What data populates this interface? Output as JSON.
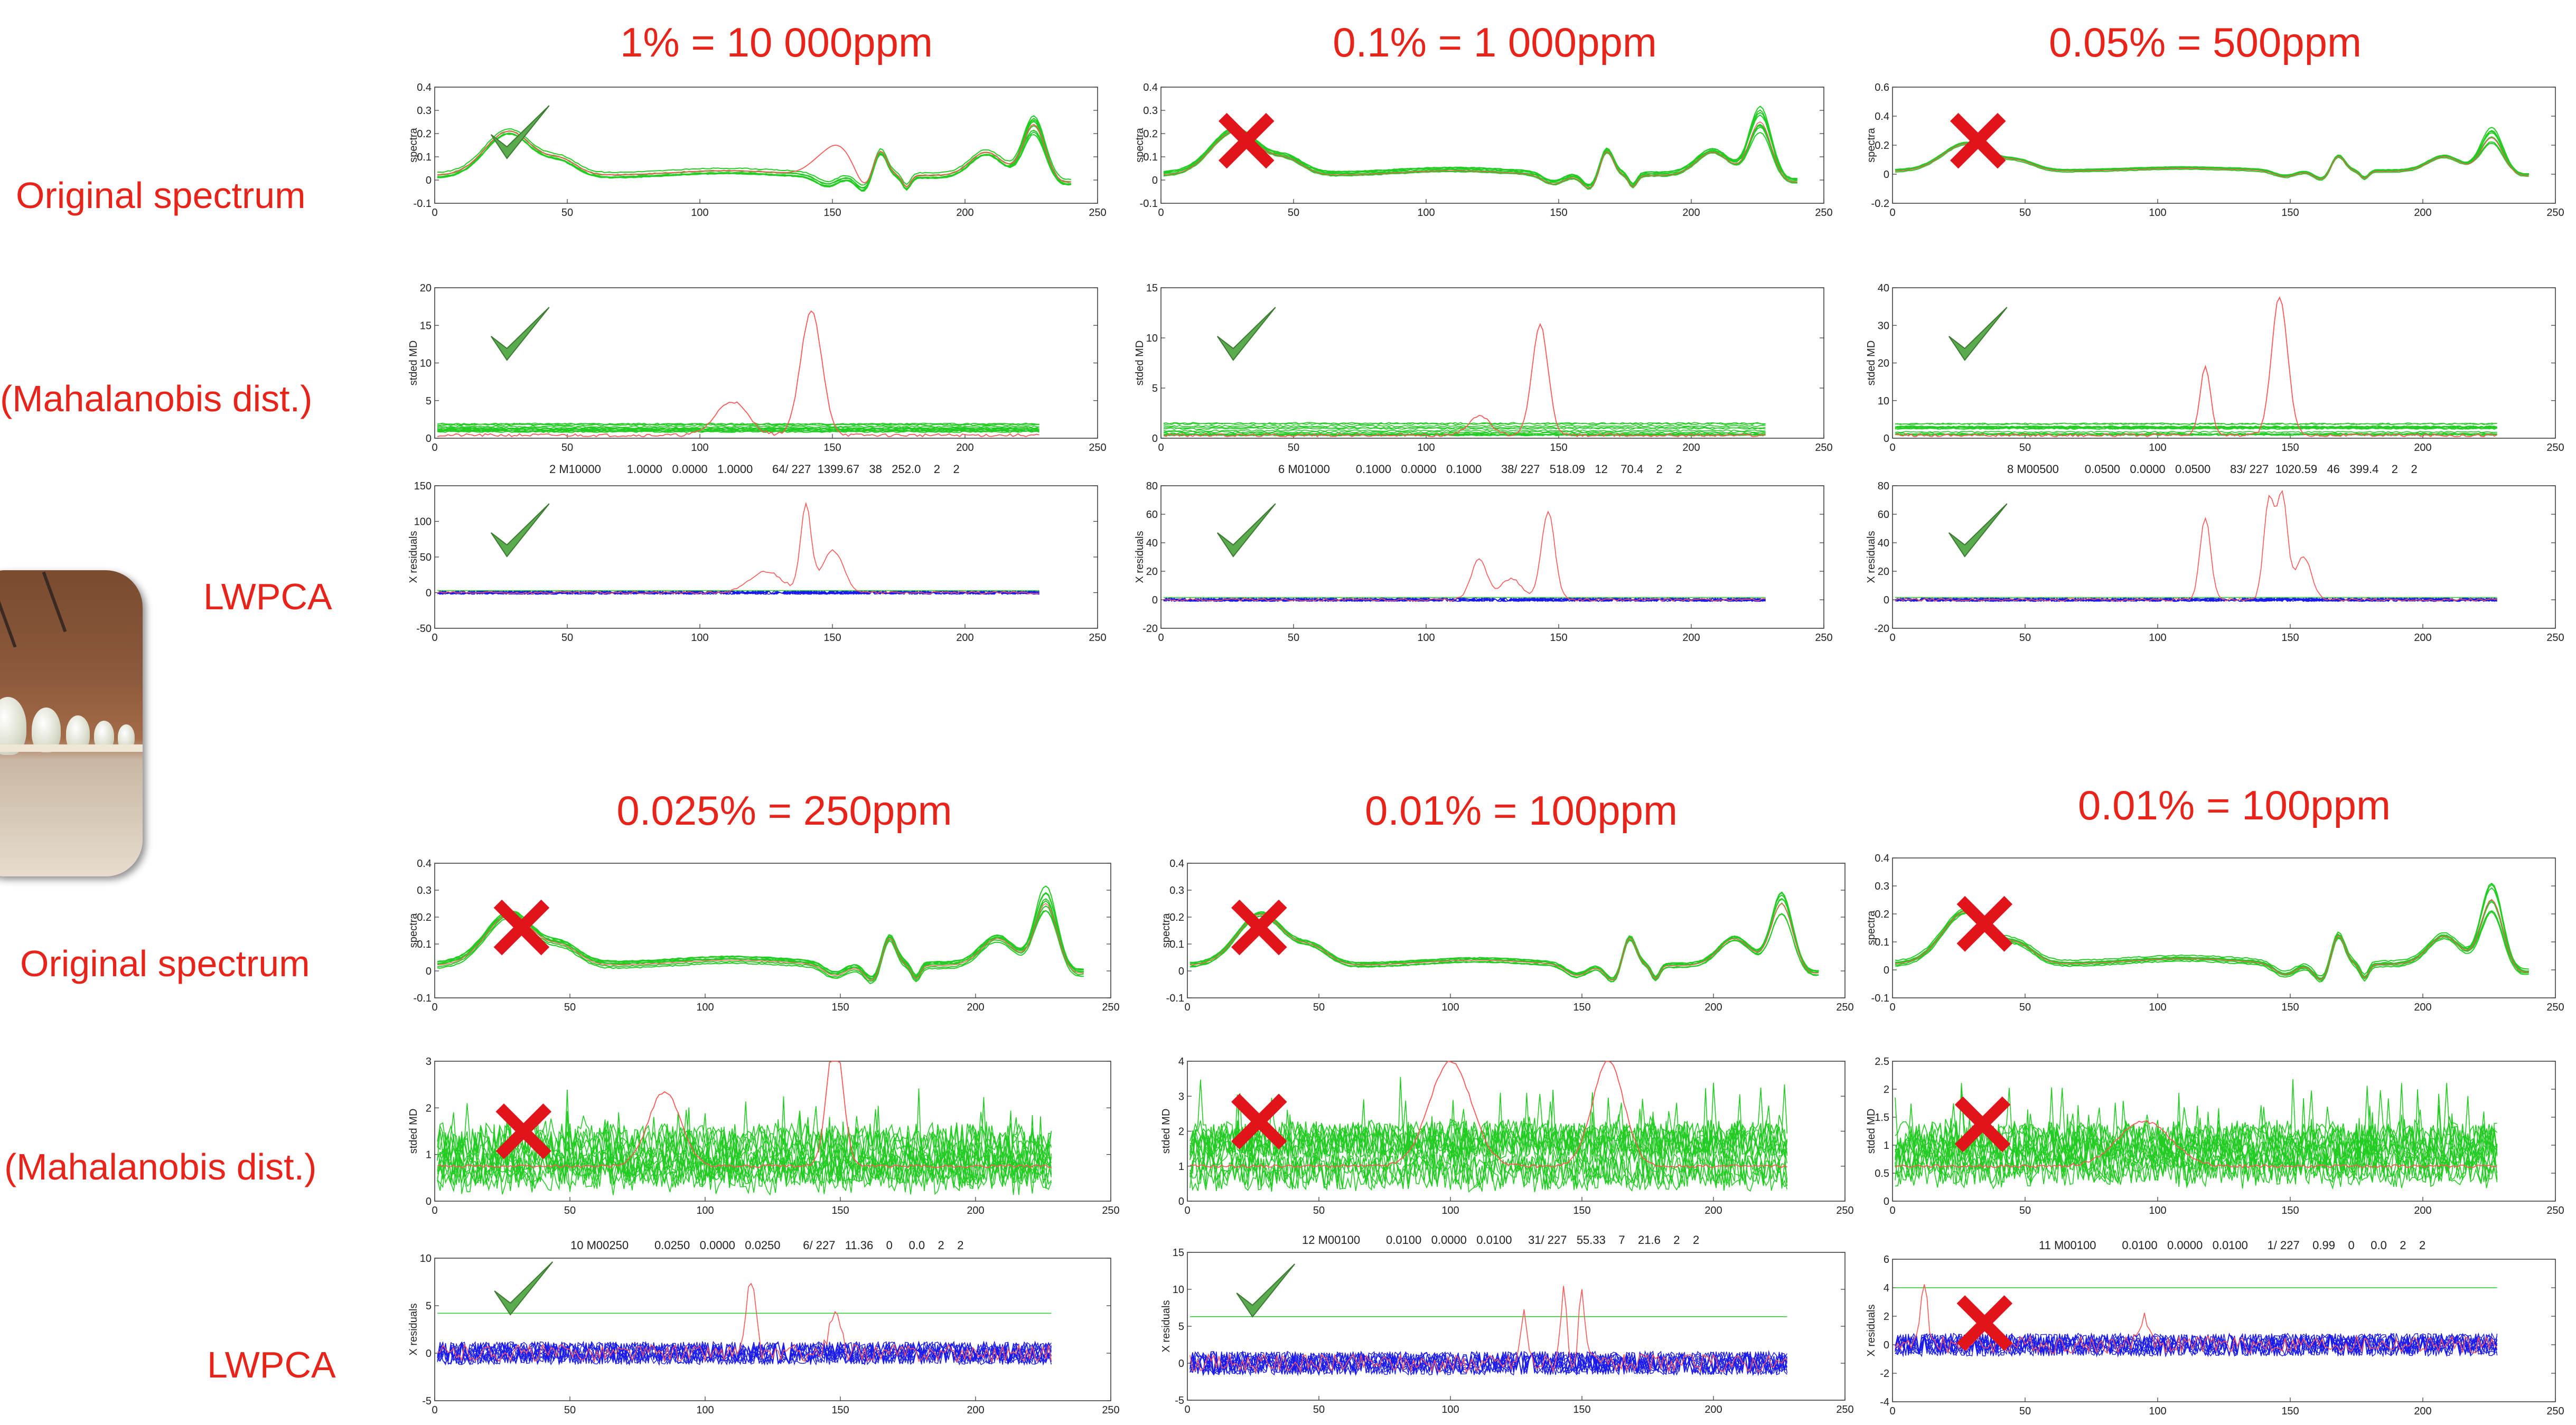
{
  "headers": {
    "c1": "1% = 10 000ppm",
    "c2": "0.1% = 1 000ppm",
    "c3": "0.05% =  500ppm",
    "c4": "0.025% =  250ppm",
    "c5": "0.01% =  100ppm",
    "c6": "0.01% =  100ppm"
  },
  "row_labels": {
    "orig1": "Original spectrum",
    "maha1": "(Mahalanobis dist.)",
    "lwpca1": "LWPCA",
    "orig2": "Original spectrum",
    "maha2": "(Mahalanobis dist.)",
    "lwpca2": "LWPCA"
  },
  "info_lines": {
    "p1": "2 M10000        1.0000   0.0000   1.0000      64/ 227  1399.67   38   252.0    2    2",
    "p2": "6 M01000        0.1000   0.0000   0.1000      38/ 227   518.09   12    70.4    2    2",
    "p3": "8 M00500        0.0500   0.0000   0.0500      83/ 227  1020.59   46   399.4    2    2",
    "p4": "10 M00250        0.0250   0.0000   0.0250       6/ 227   11.36    0     0.0    2    2",
    "p5": "12 M00100        0.0100   0.0000   0.0100     31/ 227   55.33    7    21.6    2    2",
    "p6": "11 M00100        0.0100   0.0000   0.0100      1/ 227    0.99    0     0.0    2    2"
  },
  "colors": {
    "accent": "#e8241a",
    "good": "#5aab4e",
    "bad": "#e0141a",
    "normal": "#22cc22",
    "outlier": "#ff5555",
    "residual": "#1a1aee"
  },
  "chart_data": [
    {
      "type": "line",
      "panel": "spectra-1",
      "ylabel": "spectra",
      "xlim": [
        0,
        250
      ],
      "ylim": [
        -0.1,
        0.4
      ],
      "yticks": [
        "-0.1",
        "0",
        "0.1",
        "0.2",
        "0.3",
        "0.4"
      ],
      "xticks": [
        "0",
        "50",
        "100",
        "150",
        "200",
        "250"
      ],
      "mark": "check"
    },
    {
      "type": "line",
      "panel": "spectra-2",
      "ylabel": "spectra",
      "xlim": [
        0,
        250
      ],
      "ylim": [
        -0.1,
        0.4
      ],
      "yticks": [
        "-0.1",
        "0",
        "0.1",
        "0.2",
        "0.3",
        "0.4"
      ],
      "xticks": [
        "0",
        "50",
        "100",
        "150",
        "200",
        "250"
      ],
      "mark": "cross"
    },
    {
      "type": "line",
      "panel": "spectra-3",
      "ylabel": "spectra",
      "xlim": [
        0,
        250
      ],
      "ylim": [
        -0.2,
        0.6
      ],
      "yticks": [
        "-0.2",
        "0",
        "0.2",
        "0.4",
        "0.6"
      ],
      "xticks": [
        "0",
        "50",
        "100",
        "150",
        "200",
        "250"
      ],
      "mark": "cross"
    },
    {
      "type": "line",
      "panel": "md-1",
      "ylabel": "stded MD",
      "xlim": [
        0,
        250
      ],
      "ylim": [
        0,
        20
      ],
      "yticks": [
        "0",
        "5",
        "10",
        "15",
        "20"
      ],
      "xticks": [
        "0",
        "50",
        "100",
        "150",
        "200",
        "250"
      ],
      "mark": "check"
    },
    {
      "type": "line",
      "panel": "md-2",
      "ylabel": "stded MD",
      "xlim": [
        0,
        250
      ],
      "ylim": [
        0,
        15
      ],
      "yticks": [
        "0",
        "5",
        "10",
        "15"
      ],
      "xticks": [
        "0",
        "50",
        "100",
        "150",
        "200",
        "250"
      ],
      "mark": "check"
    },
    {
      "type": "line",
      "panel": "md-3",
      "ylabel": "stded MD",
      "xlim": [
        0,
        250
      ],
      "ylim": [
        0,
        40
      ],
      "yticks": [
        "0",
        "10",
        "20",
        "30",
        "40"
      ],
      "xticks": [
        "0",
        "50",
        "100",
        "150",
        "200",
        "250"
      ],
      "mark": "check"
    },
    {
      "type": "line",
      "panel": "res-1",
      "ylabel": "X residuals",
      "xlim": [
        0,
        250
      ],
      "ylim": [
        -50,
        150
      ],
      "yticks": [
        "-50",
        "0",
        "50",
        "100",
        "150"
      ],
      "xticks": [
        "0",
        "50",
        "100",
        "150",
        "200",
        "250"
      ],
      "mark": "check"
    },
    {
      "type": "line",
      "panel": "res-2",
      "ylabel": "X residuals",
      "xlim": [
        0,
        250
      ],
      "ylim": [
        -20,
        80
      ],
      "yticks": [
        "-20",
        "0",
        "20",
        "40",
        "60",
        "80"
      ],
      "xticks": [
        "0",
        "50",
        "100",
        "150",
        "200",
        "250"
      ],
      "mark": "check"
    },
    {
      "type": "line",
      "panel": "res-3",
      "ylabel": "X residuals",
      "xlim": [
        0,
        250
      ],
      "ylim": [
        -20,
        80
      ],
      "yticks": [
        "-20",
        "0",
        "20",
        "40",
        "60",
        "80"
      ],
      "xticks": [
        "0",
        "50",
        "100",
        "150",
        "200",
        "250"
      ],
      "mark": "check"
    },
    {
      "type": "line",
      "panel": "spectra-4",
      "ylabel": "spectra",
      "xlim": [
        0,
        250
      ],
      "ylim": [
        -0.1,
        0.4
      ],
      "yticks": [
        "-0.1",
        "0",
        "0.1",
        "0.2",
        "0.3",
        "0.4"
      ],
      "xticks": [
        "0",
        "50",
        "100",
        "150",
        "200",
        "250"
      ],
      "mark": "cross"
    },
    {
      "type": "line",
      "panel": "spectra-5",
      "ylabel": "spectra",
      "xlim": [
        0,
        250
      ],
      "ylim": [
        -0.1,
        0.4
      ],
      "yticks": [
        "-0.1",
        "0",
        "0.1",
        "0.2",
        "0.3",
        "0.4"
      ],
      "xticks": [
        "0",
        "50",
        "100",
        "150",
        "200",
        "250"
      ],
      "mark": "cross"
    },
    {
      "type": "line",
      "panel": "spectra-6",
      "ylabel": "spectra",
      "xlim": [
        0,
        250
      ],
      "ylim": [
        -0.1,
        0.4
      ],
      "yticks": [
        "-0.1",
        "0",
        "0.1",
        "0.2",
        "0.3",
        "0.4"
      ],
      "xticks": [
        "0",
        "50",
        "100",
        "150",
        "200",
        "250"
      ],
      "mark": "cross"
    },
    {
      "type": "line",
      "panel": "md-4",
      "ylabel": "stded MD",
      "xlim": [
        0,
        250
      ],
      "ylim": [
        0,
        3
      ],
      "yticks": [
        "0",
        "1",
        "2",
        "3"
      ],
      "xticks": [
        "0",
        "50",
        "100",
        "150",
        "200",
        "250"
      ],
      "mark": "cross"
    },
    {
      "type": "line",
      "panel": "md-5",
      "ylabel": "stded MD",
      "xlim": [
        0,
        250
      ],
      "ylim": [
        0,
        4
      ],
      "yticks": [
        "0",
        "1",
        "2",
        "3",
        "4"
      ],
      "xticks": [
        "0",
        "50",
        "100",
        "150",
        "200",
        "250"
      ],
      "mark": "cross"
    },
    {
      "type": "line",
      "panel": "md-6",
      "ylabel": "stded MD",
      "xlim": [
        0,
        250
      ],
      "ylim": [
        0,
        2.5
      ],
      "yticks": [
        "0",
        "0.5",
        "1",
        "1.5",
        "2",
        "2.5"
      ],
      "xticks": [
        "0",
        "50",
        "100",
        "150",
        "200",
        "250"
      ],
      "mark": "cross"
    },
    {
      "type": "line",
      "panel": "res-4",
      "ylabel": "X residuals",
      "xlim": [
        0,
        250
      ],
      "ylim": [
        -5,
        10
      ],
      "yticks": [
        "-5",
        "0",
        "5",
        "10"
      ],
      "xticks": [
        "0",
        "50",
        "100",
        "150",
        "200",
        "250"
      ],
      "mark": "check"
    },
    {
      "type": "line",
      "panel": "res-5",
      "ylabel": "X residuals",
      "xlim": [
        0,
        250
      ],
      "ylim": [
        -5,
        15
      ],
      "yticks": [
        "-5",
        "0",
        "5",
        "10",
        "15"
      ],
      "xticks": [
        "0",
        "50",
        "100",
        "150",
        "200",
        "250"
      ],
      "mark": "check"
    },
    {
      "type": "line",
      "panel": "res-6",
      "ylabel": "X residuals",
      "xlim": [
        0,
        250
      ],
      "ylim": [
        -4,
        6
      ],
      "yticks": [
        "-4",
        "-2",
        "0",
        "2",
        "4",
        "6"
      ],
      "xticks": [
        "0",
        "50",
        "100",
        "150",
        "200",
        "250"
      ],
      "mark": "cross"
    }
  ]
}
